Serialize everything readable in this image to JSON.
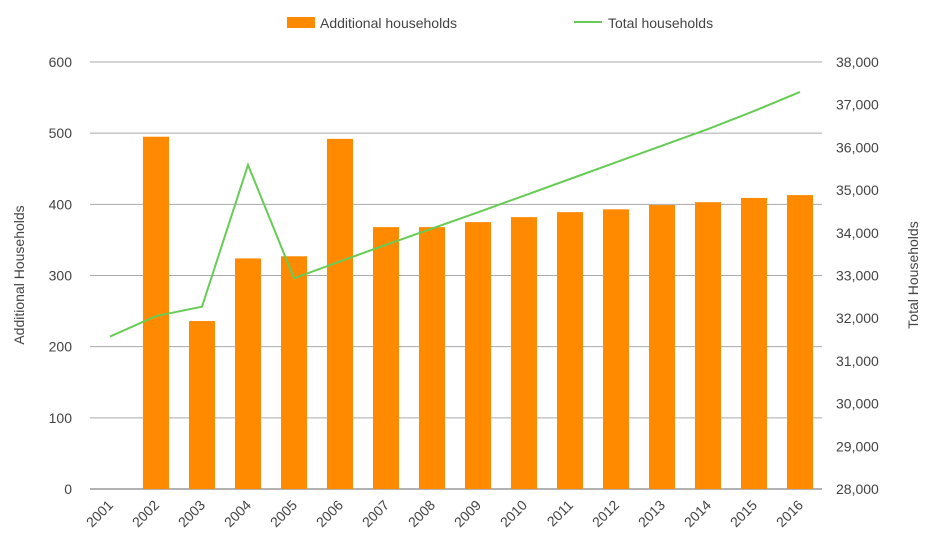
{
  "chart_data": {
    "type": "bar+line",
    "categories": [
      "2001",
      "2002",
      "2003",
      "2004",
      "2005",
      "2006",
      "2007",
      "2008",
      "2009",
      "2010",
      "2011",
      "2012",
      "2013",
      "2014",
      "2015",
      "2016"
    ],
    "series": [
      {
        "name": "Additional households",
        "type": "bar",
        "axis": "left",
        "color": "#ff8a00",
        "values": [
          0,
          495,
          236,
          324,
          327,
          492,
          368,
          368,
          375,
          382,
          389,
          393,
          399,
          403,
          409,
          413
        ]
      },
      {
        "name": "Total households",
        "type": "line",
        "axis": "right",
        "color": "#66cc55",
        "values": [
          31570,
          32050,
          32270,
          35590,
          32935,
          33330,
          33720,
          34100,
          34480,
          34870,
          35260,
          35650,
          36040,
          36430,
          36850,
          37300
        ]
      }
    ],
    "ylabel": "Additional Households",
    "y2label": "Total Households",
    "ylim": [
      0,
      600
    ],
    "y2lim": [
      28000,
      38000
    ],
    "yticks": [
      "0",
      "100",
      "200",
      "300",
      "400",
      "500",
      "600"
    ],
    "y2ticks": [
      "28,000",
      "29,000",
      "30,000",
      "31,000",
      "32,000",
      "33,000",
      "34,000",
      "35,000",
      "36,000",
      "37,000",
      "38,000"
    ],
    "grid": true,
    "legend": "top"
  }
}
